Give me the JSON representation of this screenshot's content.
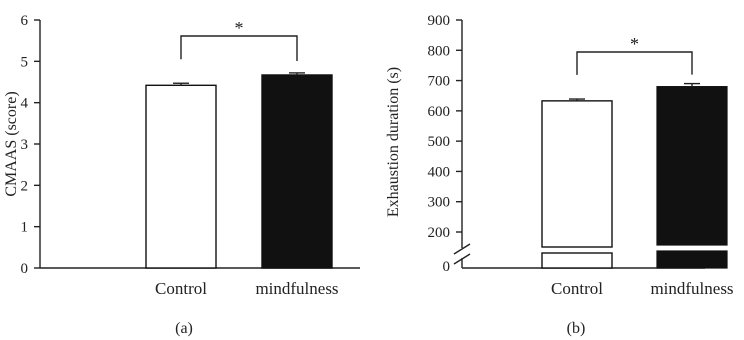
{
  "chart_data": [
    {
      "type": "bar",
      "panel_label": "(a)",
      "categories": [
        "Control",
        "mindfulness"
      ],
      "values": [
        4.42,
        4.67
      ],
      "errors": [
        0.05,
        0.05
      ],
      "bar_fill": [
        "#ffffff",
        "#111111"
      ],
      "ylabel": "CMAAS (score)",
      "ylim": [
        0,
        6
      ],
      "yticks": [
        "0",
        "1",
        "2",
        "3",
        "4",
        "5",
        "6"
      ],
      "significance": {
        "between": [
          0,
          1
        ],
        "label": "*"
      },
      "grid": false
    },
    {
      "type": "bar",
      "panel_label": "(b)",
      "categories": [
        "Control",
        "mindfulness"
      ],
      "values": [
        633,
        680
      ],
      "errors": [
        6,
        10
      ],
      "bar_fill": [
        "#ffffff",
        "#111111"
      ],
      "ylabel": "Exhaustion duration (s)",
      "ylim": [
        0,
        900
      ],
      "axis_break": [
        0,
        200
      ],
      "yticks": [
        "0",
        "200",
        "300",
        "400",
        "500",
        "600",
        "700",
        "800",
        "900"
      ],
      "significance": {
        "between": [
          0,
          1
        ],
        "label": "*"
      },
      "grid": false
    }
  ]
}
